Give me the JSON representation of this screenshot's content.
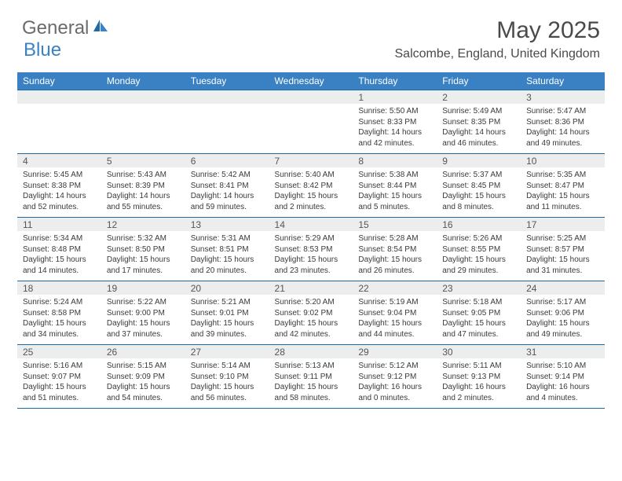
{
  "brand": {
    "part1": "General",
    "part2": "Blue"
  },
  "title": "May 2025",
  "location": "Salcombe, England, United Kingdom",
  "colors": {
    "header_bg": "#3a81c4",
    "header_text": "#ffffff",
    "row_border": "#1f6aa5",
    "daynum_bg": "#eceeee",
    "body_text": "#3a3a3a",
    "logo_gray": "#6b6b6b",
    "logo_blue": "#3b82c4"
  },
  "day_headers": [
    "Sunday",
    "Monday",
    "Tuesday",
    "Wednesday",
    "Thursday",
    "Friday",
    "Saturday"
  ],
  "weeks": [
    [
      {
        "n": "",
        "lines": []
      },
      {
        "n": "",
        "lines": []
      },
      {
        "n": "",
        "lines": []
      },
      {
        "n": "",
        "lines": []
      },
      {
        "n": "1",
        "lines": [
          "Sunrise: 5:50 AM",
          "Sunset: 8:33 PM",
          "Daylight: 14 hours and 42 minutes."
        ]
      },
      {
        "n": "2",
        "lines": [
          "Sunrise: 5:49 AM",
          "Sunset: 8:35 PM",
          "Daylight: 14 hours and 46 minutes."
        ]
      },
      {
        "n": "3",
        "lines": [
          "Sunrise: 5:47 AM",
          "Sunset: 8:36 PM",
          "Daylight: 14 hours and 49 minutes."
        ]
      }
    ],
    [
      {
        "n": "4",
        "lines": [
          "Sunrise: 5:45 AM",
          "Sunset: 8:38 PM",
          "Daylight: 14 hours and 52 minutes."
        ]
      },
      {
        "n": "5",
        "lines": [
          "Sunrise: 5:43 AM",
          "Sunset: 8:39 PM",
          "Daylight: 14 hours and 55 minutes."
        ]
      },
      {
        "n": "6",
        "lines": [
          "Sunrise: 5:42 AM",
          "Sunset: 8:41 PM",
          "Daylight: 14 hours and 59 minutes."
        ]
      },
      {
        "n": "7",
        "lines": [
          "Sunrise: 5:40 AM",
          "Sunset: 8:42 PM",
          "Daylight: 15 hours and 2 minutes."
        ]
      },
      {
        "n": "8",
        "lines": [
          "Sunrise: 5:38 AM",
          "Sunset: 8:44 PM",
          "Daylight: 15 hours and 5 minutes."
        ]
      },
      {
        "n": "9",
        "lines": [
          "Sunrise: 5:37 AM",
          "Sunset: 8:45 PM",
          "Daylight: 15 hours and 8 minutes."
        ]
      },
      {
        "n": "10",
        "lines": [
          "Sunrise: 5:35 AM",
          "Sunset: 8:47 PM",
          "Daylight: 15 hours and 11 minutes."
        ]
      }
    ],
    [
      {
        "n": "11",
        "lines": [
          "Sunrise: 5:34 AM",
          "Sunset: 8:48 PM",
          "Daylight: 15 hours and 14 minutes."
        ]
      },
      {
        "n": "12",
        "lines": [
          "Sunrise: 5:32 AM",
          "Sunset: 8:50 PM",
          "Daylight: 15 hours and 17 minutes."
        ]
      },
      {
        "n": "13",
        "lines": [
          "Sunrise: 5:31 AM",
          "Sunset: 8:51 PM",
          "Daylight: 15 hours and 20 minutes."
        ]
      },
      {
        "n": "14",
        "lines": [
          "Sunrise: 5:29 AM",
          "Sunset: 8:53 PM",
          "Daylight: 15 hours and 23 minutes."
        ]
      },
      {
        "n": "15",
        "lines": [
          "Sunrise: 5:28 AM",
          "Sunset: 8:54 PM",
          "Daylight: 15 hours and 26 minutes."
        ]
      },
      {
        "n": "16",
        "lines": [
          "Sunrise: 5:26 AM",
          "Sunset: 8:55 PM",
          "Daylight: 15 hours and 29 minutes."
        ]
      },
      {
        "n": "17",
        "lines": [
          "Sunrise: 5:25 AM",
          "Sunset: 8:57 PM",
          "Daylight: 15 hours and 31 minutes."
        ]
      }
    ],
    [
      {
        "n": "18",
        "lines": [
          "Sunrise: 5:24 AM",
          "Sunset: 8:58 PM",
          "Daylight: 15 hours and 34 minutes."
        ]
      },
      {
        "n": "19",
        "lines": [
          "Sunrise: 5:22 AM",
          "Sunset: 9:00 PM",
          "Daylight: 15 hours and 37 minutes."
        ]
      },
      {
        "n": "20",
        "lines": [
          "Sunrise: 5:21 AM",
          "Sunset: 9:01 PM",
          "Daylight: 15 hours and 39 minutes."
        ]
      },
      {
        "n": "21",
        "lines": [
          "Sunrise: 5:20 AM",
          "Sunset: 9:02 PM",
          "Daylight: 15 hours and 42 minutes."
        ]
      },
      {
        "n": "22",
        "lines": [
          "Sunrise: 5:19 AM",
          "Sunset: 9:04 PM",
          "Daylight: 15 hours and 44 minutes."
        ]
      },
      {
        "n": "23",
        "lines": [
          "Sunrise: 5:18 AM",
          "Sunset: 9:05 PM",
          "Daylight: 15 hours and 47 minutes."
        ]
      },
      {
        "n": "24",
        "lines": [
          "Sunrise: 5:17 AM",
          "Sunset: 9:06 PM",
          "Daylight: 15 hours and 49 minutes."
        ]
      }
    ],
    [
      {
        "n": "25",
        "lines": [
          "Sunrise: 5:16 AM",
          "Sunset: 9:07 PM",
          "Daylight: 15 hours and 51 minutes."
        ]
      },
      {
        "n": "26",
        "lines": [
          "Sunrise: 5:15 AM",
          "Sunset: 9:09 PM",
          "Daylight: 15 hours and 54 minutes."
        ]
      },
      {
        "n": "27",
        "lines": [
          "Sunrise: 5:14 AM",
          "Sunset: 9:10 PM",
          "Daylight: 15 hours and 56 minutes."
        ]
      },
      {
        "n": "28",
        "lines": [
          "Sunrise: 5:13 AM",
          "Sunset: 9:11 PM",
          "Daylight: 15 hours and 58 minutes."
        ]
      },
      {
        "n": "29",
        "lines": [
          "Sunrise: 5:12 AM",
          "Sunset: 9:12 PM",
          "Daylight: 16 hours and 0 minutes."
        ]
      },
      {
        "n": "30",
        "lines": [
          "Sunrise: 5:11 AM",
          "Sunset: 9:13 PM",
          "Daylight: 16 hours and 2 minutes."
        ]
      },
      {
        "n": "31",
        "lines": [
          "Sunrise: 5:10 AM",
          "Sunset: 9:14 PM",
          "Daylight: 16 hours and 4 minutes."
        ]
      }
    ]
  ]
}
